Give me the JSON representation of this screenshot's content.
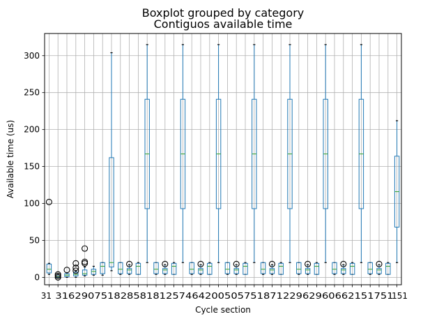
{
  "chart_data": {
    "type": "boxplot",
    "suptitle": "Boxplot grouped by category",
    "title": "Contiguos available time",
    "xlabel": "Cycle section",
    "ylabel": "Available time (us)",
    "ylim": [
      -10,
      330
    ],
    "yticks": [
      0,
      50,
      100,
      150,
      200,
      250,
      300
    ],
    "grid": true,
    "xtick_labels_visible": {
      "first": "31",
      "last": "151",
      "overlapping_text": "3162907518285818125746420050575187122962960662151751"
    },
    "box_color": "#1f77b4",
    "median_color": "#2ca02c",
    "outlier_color": "#000000",
    "boxes": [
      {
        "q1": 6,
        "median": 11,
        "q3": 18,
        "whisker_low": 4,
        "whisker_high": 19,
        "outliers": [
          102
        ]
      },
      {
        "q1": 0,
        "median": 1,
        "q3": 3,
        "whisker_low": 0,
        "whisker_high": 4,
        "outliers": [
          0,
          2,
          4
        ]
      },
      {
        "q1": 1,
        "median": 3,
        "q3": 5,
        "whisker_low": 0,
        "whisker_high": 6,
        "outliers": [
          10
        ]
      },
      {
        "q1": 2,
        "median": 4,
        "q3": 7,
        "whisker_low": 0,
        "whisker_high": 8,
        "outliers": [
          9,
          13,
          19
        ]
      },
      {
        "q1": 3,
        "median": 5,
        "q3": 10,
        "whisker_low": 2,
        "whisker_high": 14,
        "outliers": [
          19,
          21,
          39
        ]
      },
      {
        "q1": 4,
        "median": 8,
        "q3": 11,
        "whisker_low": 3,
        "whisker_high": 15,
        "outliers": []
      },
      {
        "q1": 5,
        "median": 15,
        "q3": 20,
        "whisker_low": 3,
        "whisker_high": 20,
        "outliers": []
      },
      {
        "q1": 14,
        "median": 20,
        "q3": 162,
        "whisker_low": 9,
        "whisker_high": 304,
        "outliers": []
      },
      {
        "q1": 5,
        "median": 11,
        "q3": 20,
        "whisker_low": 4,
        "whisker_high": 20,
        "outliers": []
      },
      {
        "q1": 5,
        "median": 10,
        "q3": 12,
        "whisker_low": 4,
        "whisker_high": 17,
        "outliers": [
          18
        ]
      },
      {
        "q1": 4,
        "median": 15,
        "q3": 19,
        "whisker_low": 4,
        "whisker_high": 20,
        "outliers": []
      },
      {
        "q1": 93,
        "median": 167,
        "q3": 241,
        "whisker_low": 20,
        "whisker_high": 315,
        "outliers": []
      },
      {
        "q1": 5,
        "median": 11,
        "q3": 20,
        "whisker_low": 4,
        "whisker_high": 20,
        "outliers": []
      },
      {
        "q1": 5,
        "median": 10,
        "q3": 12,
        "whisker_low": 4,
        "whisker_high": 17,
        "outliers": [
          18
        ]
      },
      {
        "q1": 4,
        "median": 15,
        "q3": 19,
        "whisker_low": 4,
        "whisker_high": 20,
        "outliers": []
      },
      {
        "q1": 93,
        "median": 167,
        "q3": 241,
        "whisker_low": 20,
        "whisker_high": 315,
        "outliers": []
      },
      {
        "q1": 5,
        "median": 11,
        "q3": 20,
        "whisker_low": 4,
        "whisker_high": 20,
        "outliers": []
      },
      {
        "q1": 5,
        "median": 10,
        "q3": 12,
        "whisker_low": 4,
        "whisker_high": 17,
        "outliers": [
          18
        ]
      },
      {
        "q1": 4,
        "median": 15,
        "q3": 19,
        "whisker_low": 4,
        "whisker_high": 20,
        "outliers": []
      },
      {
        "q1": 93,
        "median": 167,
        "q3": 241,
        "whisker_low": 20,
        "whisker_high": 315,
        "outliers": []
      },
      {
        "q1": 5,
        "median": 11,
        "q3": 20,
        "whisker_low": 4,
        "whisker_high": 20,
        "outliers": []
      },
      {
        "q1": 5,
        "median": 10,
        "q3": 12,
        "whisker_low": 4,
        "whisker_high": 17,
        "outliers": [
          18
        ]
      },
      {
        "q1": 4,
        "median": 15,
        "q3": 19,
        "whisker_low": 4,
        "whisker_high": 20,
        "outliers": []
      },
      {
        "q1": 93,
        "median": 167,
        "q3": 241,
        "whisker_low": 20,
        "whisker_high": 315,
        "outliers": []
      },
      {
        "q1": 5,
        "median": 11,
        "q3": 20,
        "whisker_low": 4,
        "whisker_high": 20,
        "outliers": []
      },
      {
        "q1": 5,
        "median": 10,
        "q3": 12,
        "whisker_low": 4,
        "whisker_high": 17,
        "outliers": [
          18
        ]
      },
      {
        "q1": 4,
        "median": 15,
        "q3": 19,
        "whisker_low": 4,
        "whisker_high": 20,
        "outliers": []
      },
      {
        "q1": 93,
        "median": 167,
        "q3": 241,
        "whisker_low": 20,
        "whisker_high": 315,
        "outliers": []
      },
      {
        "q1": 5,
        "median": 11,
        "q3": 20,
        "whisker_low": 4,
        "whisker_high": 20,
        "outliers": []
      },
      {
        "q1": 5,
        "median": 10,
        "q3": 12,
        "whisker_low": 4,
        "whisker_high": 17,
        "outliers": [
          18
        ]
      },
      {
        "q1": 4,
        "median": 15,
        "q3": 19,
        "whisker_low": 4,
        "whisker_high": 20,
        "outliers": []
      },
      {
        "q1": 93,
        "median": 167,
        "q3": 241,
        "whisker_low": 20,
        "whisker_high": 315,
        "outliers": []
      },
      {
        "q1": 5,
        "median": 11,
        "q3": 20,
        "whisker_low": 4,
        "whisker_high": 20,
        "outliers": []
      },
      {
        "q1": 5,
        "median": 10,
        "q3": 12,
        "whisker_low": 4,
        "whisker_high": 17,
        "outliers": [
          18
        ]
      },
      {
        "q1": 4,
        "median": 15,
        "q3": 19,
        "whisker_low": 4,
        "whisker_high": 20,
        "outliers": []
      },
      {
        "q1": 93,
        "median": 167,
        "q3": 241,
        "whisker_low": 20,
        "whisker_high": 315,
        "outliers": []
      },
      {
        "q1": 5,
        "median": 11,
        "q3": 20,
        "whisker_low": 4,
        "whisker_high": 20,
        "outliers": []
      },
      {
        "q1": 5,
        "median": 10,
        "q3": 12,
        "whisker_low": 4,
        "whisker_high": 17,
        "outliers": [
          18
        ]
      },
      {
        "q1": 4,
        "median": 15,
        "q3": 19,
        "whisker_low": 4,
        "whisker_high": 20,
        "outliers": []
      },
      {
        "q1": 68,
        "median": 116,
        "q3": 164,
        "whisker_low": 20,
        "whisker_high": 212,
        "outliers": []
      }
    ]
  }
}
